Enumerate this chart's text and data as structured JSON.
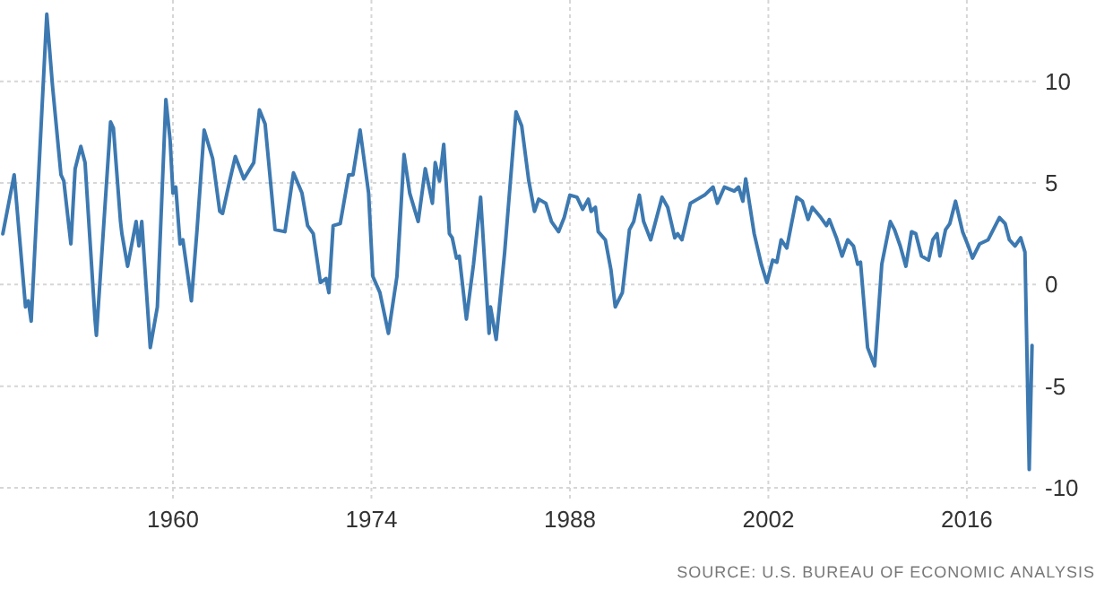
{
  "chart_data": {
    "type": "line",
    "x": [
      1948.0,
      1948.8,
      1949.6,
      1949.8,
      1950.0,
      1951.1,
      1951.5,
      1952.1,
      1952.3,
      1952.8,
      1953.1,
      1953.5,
      1953.8,
      1954.5,
      1954.6,
      1955.6,
      1955.8,
      1956.3,
      1956.4,
      1956.8,
      1957.4,
      1957.6,
      1957.8,
      1958.4,
      1958.9,
      1959.5,
      1959.8,
      1960.0,
      1960.2,
      1960.5,
      1960.7,
      1961.3,
      1961.7,
      1962.2,
      1962.8,
      1963.3,
      1963.5,
      1964.0,
      1964.4,
      1965.0,
      1965.7,
      1966.1,
      1966.5,
      1967.2,
      1967.9,
      1968.5,
      1969.1,
      1969.5,
      1969.9,
      1970.4,
      1970.8,
      1971.0,
      1971.3,
      1971.8,
      1972.1,
      1972.4,
      1972.7,
      1973.2,
      1973.8,
      1974.1,
      1974.6,
      1975.2,
      1975.8,
      1976.3,
      1976.7,
      1977.3,
      1977.8,
      1978.3,
      1978.5,
      1978.8,
      1979.1,
      1979.5,
      1979.7,
      1980.0,
      1980.2,
      1980.7,
      1981.2,
      1981.7,
      1982.3,
      1982.4,
      1982.8,
      1983.4,
      1984.2,
      1984.6,
      1985.1,
      1985.5,
      1985.8,
      1986.3,
      1986.7,
      1987.2,
      1987.6,
      1988.0,
      1988.5,
      1988.9,
      1989.3,
      1989.5,
      1989.8,
      1990.0,
      1990.5,
      1990.9,
      1991.2,
      1991.7,
      1992.2,
      1992.5,
      1992.9,
      1993.2,
      1993.7,
      1994.5,
      1994.9,
      1995.4,
      1995.6,
      1995.9,
      1996.5,
      1997.0,
      1997.5,
      1998.1,
      1998.4,
      1998.9,
      1999.6,
      1999.9,
      2000.2,
      2000.4,
      2001.0,
      2001.5,
      2001.9,
      2002.3,
      2002.6,
      2002.9,
      2003.3,
      2004.0,
      2004.4,
      2004.8,
      2005.1,
      2005.7,
      2006.1,
      2006.3,
      2006.8,
      2007.2,
      2007.6,
      2008.0,
      2008.3,
      2008.5,
      2009.0,
      2009.5,
      2010.0,
      2010.6,
      2010.9,
      2011.3,
      2011.7,
      2012.1,
      2012.4,
      2012.8,
      2013.3,
      2013.6,
      2013.9,
      2014.1,
      2014.5,
      2014.8,
      2015.2,
      2015.7,
      2016.1,
      2016.4,
      2016.9,
      2017.5,
      2018.3,
      2018.7,
      2019.0,
      2019.4,
      2019.8,
      2020.1,
      2020.4,
      2020.6
    ],
    "series": [
      {
        "color": "#3d79b1",
        "values": [
          2.5,
          5.4,
          -1.1,
          -0.8,
          -1.8,
          13.3,
          9.8,
          5.4,
          5.1,
          2.0,
          5.7,
          6.8,
          6.0,
          -1.7,
          -2.5,
          8.0,
          7.7,
          3.1,
          2.5,
          0.9,
          3.1,
          1.9,
          3.1,
          -3.1,
          -1.1,
          9.1,
          7.1,
          4.5,
          4.8,
          2.0,
          2.2,
          -0.8,
          2.7,
          7.6,
          6.2,
          3.6,
          3.5,
          5.1,
          6.3,
          5.2,
          6.0,
          8.6,
          7.9,
          2.7,
          2.6,
          5.5,
          4.5,
          2.9,
          2.5,
          0.1,
          0.3,
          -0.4,
          2.9,
          3.0,
          4.2,
          5.4,
          5.4,
          7.6,
          4.5,
          0.4,
          -0.4,
          -2.4,
          0.4,
          6.4,
          4.5,
          3.1,
          5.7,
          4.0,
          6.0,
          5.1,
          6.9,
          2.5,
          2.3,
          1.3,
          1.4,
          -1.7,
          1.0,
          4.3,
          -2.4,
          -1.1,
          -2.7,
          1.6,
          8.5,
          7.8,
          5.1,
          3.6,
          4.2,
          4.0,
          3.1,
          2.6,
          3.3,
          4.4,
          4.3,
          3.7,
          4.2,
          3.6,
          3.8,
          2.6,
          2.2,
          0.7,
          -1.1,
          -0.4,
          2.7,
          3.1,
          4.4,
          3.1,
          2.2,
          4.3,
          3.8,
          2.3,
          2.5,
          2.2,
          4.0,
          4.2,
          4.4,
          4.8,
          4.0,
          4.8,
          4.6,
          4.8,
          4.1,
          5.2,
          2.5,
          1.0,
          0.1,
          1.2,
          1.1,
          2.2,
          1.8,
          4.3,
          4.1,
          3.2,
          3.8,
          3.3,
          2.9,
          3.2,
          2.3,
          1.4,
          2.2,
          1.9,
          1.0,
          1.1,
          -3.1,
          -4.0,
          1.0,
          3.1,
          2.7,
          1.9,
          0.9,
          2.6,
          2.5,
          1.4,
          1.2,
          2.2,
          2.5,
          1.4,
          2.7,
          3.0,
          4.1,
          2.6,
          1.9,
          1.3,
          2.0,
          2.2,
          3.3,
          3.0,
          2.2,
          1.9,
          2.3,
          1.6,
          -9.1,
          -3.0
        ]
      }
    ],
    "xlim": [
      1947.8,
      2021
    ],
    "xticks": [
      1960,
      1974,
      1988,
      2002,
      2016
    ],
    "ylim": [
      -10,
      14
    ],
    "yticks": [
      -10,
      -5,
      0,
      5,
      10
    ],
    "grid": true,
    "line_style": "solid",
    "annotations": [
      "SOURCE: U.S. BUREAU OF ECONOMIC ANALYSIS"
    ]
  }
}
